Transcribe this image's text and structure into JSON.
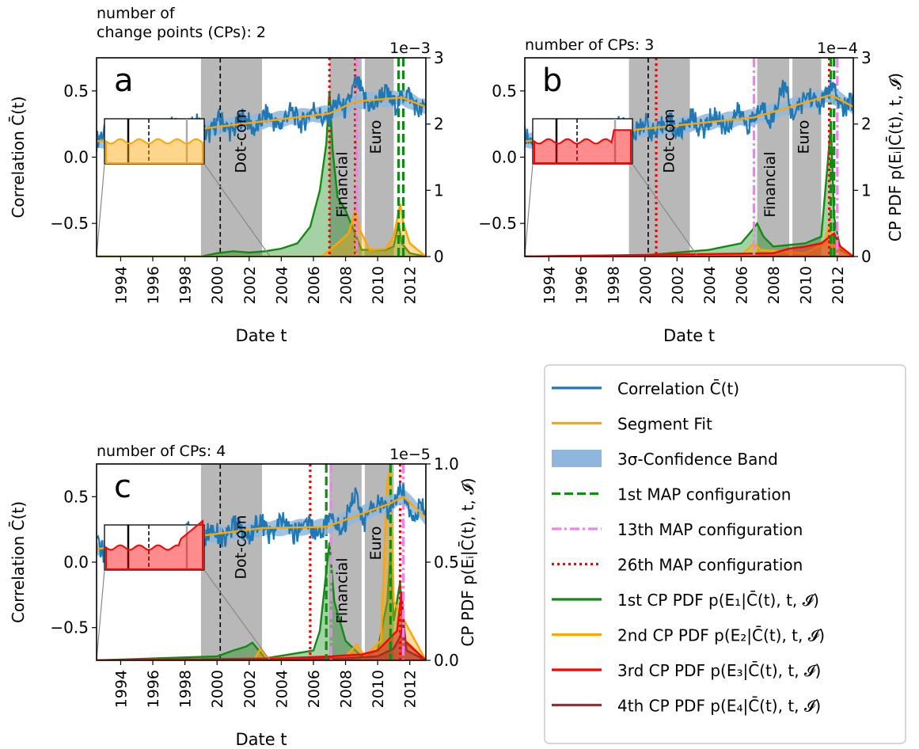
{
  "colors": {
    "correlation": "#1f77b4",
    "segment_fit": "#ffa500",
    "band": "#8fb7dd",
    "map1": "#138a13",
    "map13": "#ee82ee",
    "map26": "#ff0000",
    "pdf1": "#138a13",
    "pdf2": "#ffa500",
    "pdf3": "#ff0000",
    "pdf4": "#a52a2a",
    "crisis_shade": "#b8b8b8"
  },
  "chart_data": [
    {
      "type": "line",
      "panel_label": "a",
      "header_lines": [
        "number of",
        "change points (CPs): 2"
      ],
      "offset_text": "1e−3",
      "ylabel_left": "Correlation C̄(t)",
      "ylabel_right": "",
      "xlabel": "Date t",
      "x_ticks": [
        "1994",
        "1996",
        "1998",
        "2000",
        "2002",
        "2004",
        "2006",
        "2008",
        "2010",
        "2012"
      ],
      "y_left_ticks": [
        "0.5",
        "0.0",
        "−0.5"
      ],
      "y_right_ticks": [
        "3",
        "2",
        "1",
        "0"
      ],
      "ylim_left": [
        -0.75,
        0.75
      ],
      "ylim_right": [
        0,
        3
      ],
      "crisis_labels": [
        "Dot-com",
        "Financial",
        "Euro"
      ],
      "crisis_periods": [
        [
          1999.0,
          2002.8
        ],
        [
          2007.0,
          2009.0
        ],
        [
          2009.2,
          2011.0
        ]
      ],
      "marker_line_x": 2000.2,
      "map_lines": [
        {
          "which": "map26",
          "x": [
            2007.0,
            2008.6
          ]
        },
        {
          "which": "map13",
          "x": [
            2008.7
          ]
        },
        {
          "which": "map1",
          "x": [
            2011.3,
            2011.6
          ]
        }
      ],
      "segment_fit": {
        "x": [
          1992.5,
          2007.0,
          2008.6,
          2011.5,
          2013.0
        ],
        "y": [
          0.12,
          0.33,
          0.42,
          0.45,
          0.38
        ]
      },
      "pdf_curves": [
        {
          "which": "pdf1",
          "filled": true,
          "points": [
            [
              1992.5,
              0
            ],
            [
              1999,
              0
            ],
            [
              2000,
              0.05
            ],
            [
              2001,
              0.08
            ],
            [
              2002,
              0.06
            ],
            [
              2003,
              0.08
            ],
            [
              2004,
              0.12
            ],
            [
              2005,
              0.2
            ],
            [
              2005.8,
              0.45
            ],
            [
              2006.4,
              1.0
            ],
            [
              2006.8,
              1.7
            ],
            [
              2007.0,
              2.5
            ],
            [
              2007.2,
              1.6
            ],
            [
              2007.5,
              0.9
            ],
            [
              2008.0,
              0.7
            ],
            [
              2008.5,
              0.4
            ],
            [
              2009.0,
              0.1
            ],
            [
              2010.5,
              0.1
            ],
            [
              2011.0,
              0.15
            ],
            [
              2011.3,
              0.5
            ],
            [
              2011.5,
              0.2
            ],
            [
              2012,
              0.05
            ],
            [
              2013,
              0
            ]
          ]
        },
        {
          "which": "pdf2",
          "filled": true,
          "points": [
            [
              1992.5,
              0
            ],
            [
              2006.5,
              0
            ],
            [
              2007.5,
              0.2
            ],
            [
              2008.2,
              0.35
            ],
            [
              2008.6,
              0.7
            ],
            [
              2008.9,
              0.4
            ],
            [
              2009.5,
              0.1
            ],
            [
              2010.5,
              0.12
            ],
            [
              2011.0,
              0.3
            ],
            [
              2011.4,
              0.8
            ],
            [
              2011.6,
              0.5
            ],
            [
              2012.0,
              0.2
            ],
            [
              2013,
              0
            ]
          ]
        }
      ],
      "inset": {
        "has_box": true
      }
    },
    {
      "type": "line",
      "panel_label": "b",
      "header_lines": [
        "number of CPs: 3"
      ],
      "offset_text": "1e−4",
      "ylabel_left": "",
      "ylabel_right": "CP PDF p(Eᵢ|C̄(t), t, 𝓘)",
      "xlabel": "Date t",
      "x_ticks": [
        "1994",
        "1996",
        "1998",
        "2000",
        "2002",
        "2004",
        "2006",
        "2008",
        "2010",
        "2012"
      ],
      "y_left_ticks": [
        "0.5",
        "0.0",
        "−0.5"
      ],
      "y_right_ticks": [
        "3",
        "2",
        "1",
        "0"
      ],
      "ylim_left": [
        -0.75,
        0.75
      ],
      "ylim_right": [
        0,
        3
      ],
      "crisis_labels": [
        "Dot-com",
        "Financial",
        "Euro"
      ],
      "crisis_periods": [
        [
          1999.0,
          2002.8
        ],
        [
          2007.0,
          2009.0
        ],
        [
          2009.2,
          2011.0
        ]
      ],
      "marker_line_x": 2000.2,
      "map_lines": [
        {
          "which": "map26",
          "x": [
            2000.7,
            2011.5
          ]
        },
        {
          "which": "map13",
          "x": [
            2006.8,
            2012.0
          ]
        },
        {
          "which": "map1",
          "x": [
            2011.6,
            2011.8
          ]
        }
      ],
      "segment_fit": {
        "x": [
          1992.5,
          2006.8,
          2011.6,
          2013.0
        ],
        "y": [
          0.12,
          0.3,
          0.47,
          0.38
        ]
      },
      "pdf_curves": [
        {
          "which": "pdf1",
          "filled": true,
          "points": [
            [
              1992.5,
              0
            ],
            [
              2000,
              0.02
            ],
            [
              2004,
              0.1
            ],
            [
              2006,
              0.2
            ],
            [
              2006.7,
              0.4
            ],
            [
              2007.0,
              0.5
            ],
            [
              2007.4,
              0.3
            ],
            [
              2008,
              0.15
            ],
            [
              2010,
              0.2
            ],
            [
              2011,
              0.3
            ],
            [
              2011.4,
              1.4
            ],
            [
              2011.6,
              2.0
            ],
            [
              2011.8,
              0.6
            ],
            [
              2012.2,
              0.1
            ],
            [
              2013,
              0
            ]
          ]
        },
        {
          "which": "pdf2",
          "filled": true,
          "points": [
            [
              1992.5,
              0
            ],
            [
              2006,
              0.02
            ],
            [
              2006.8,
              0.2
            ],
            [
              2007.2,
              0.1
            ],
            [
              2010,
              0.05
            ],
            [
              2011.2,
              0.2
            ],
            [
              2011.5,
              0.5
            ],
            [
              2011.7,
              0.2
            ],
            [
              2013,
              0
            ]
          ]
        },
        {
          "which": "pdf3",
          "filled": true,
          "points": [
            [
              1992.5,
              0
            ],
            [
              2008,
              0.05
            ],
            [
              2009,
              0.12
            ],
            [
              2010,
              0.15
            ],
            [
              2011,
              0.2
            ],
            [
              2011.8,
              0.35
            ],
            [
              2012.2,
              0.15
            ],
            [
              2013,
              0
            ]
          ]
        }
      ],
      "inset": {
        "has_box": true
      }
    },
    {
      "type": "line",
      "panel_label": "c",
      "header_lines": [
        "number of CPs: 4"
      ],
      "offset_text": "1e−5",
      "ylabel_left": "Correlation C̄(t)",
      "ylabel_right": "CP PDF p(Eᵢ|C̄(t), t, 𝓘)",
      "xlabel": "Date t",
      "x_ticks": [
        "1994",
        "1996",
        "1998",
        "2000",
        "2002",
        "2004",
        "2006",
        "2008",
        "2010",
        "2012"
      ],
      "y_left_ticks": [
        "0.5",
        "0.0",
        "−0.5"
      ],
      "y_right_ticks": [
        "1.0",
        "0.5",
        "0.0"
      ],
      "ylim_left": [
        -0.75,
        0.75
      ],
      "ylim_right": [
        0,
        1.0
      ],
      "crisis_labels": [
        "Dot-com",
        "Financial",
        "Euro"
      ],
      "crisis_periods": [
        [
          1999.0,
          2002.8
        ],
        [
          2007.0,
          2009.0
        ],
        [
          2009.2,
          2011.0
        ]
      ],
      "marker_line_x": 2000.2,
      "map_lines": [
        {
          "which": "map26",
          "x": [
            2005.8,
            2011.4
          ]
        },
        {
          "which": "map13",
          "x": [
            2007.1,
            2011.6
          ]
        },
        {
          "which": "map1",
          "x": [
            2006.8,
            2010.8
          ]
        }
      ],
      "segment_fit": {
        "x": [
          1992.5,
          2002.8,
          2006.8,
          2010.8,
          2011.6,
          2013.0
        ],
        "y": [
          0.1,
          0.26,
          0.27,
          0.45,
          0.5,
          0.34
        ]
      },
      "pdf_curves": [
        {
          "which": "pdf1",
          "filled": true,
          "points": [
            [
              1992.5,
              0
            ],
            [
              2000,
              0.02
            ],
            [
              2001,
              0.05
            ],
            [
              2001.8,
              0.07
            ],
            [
              2002.2,
              0.09
            ],
            [
              2002.6,
              0.05
            ],
            [
              2003,
              0.01
            ],
            [
              2006,
              0.05
            ],
            [
              2006.4,
              0.15
            ],
            [
              2006.8,
              0.45
            ],
            [
              2007.0,
              0.6
            ],
            [
              2007.3,
              0.3
            ],
            [
              2008,
              0.1
            ],
            [
              2009,
              0.02
            ],
            [
              2010,
              0.05
            ],
            [
              2010.6,
              0.3
            ],
            [
              2010.8,
              0.55
            ],
            [
              2011.0,
              0.2
            ],
            [
              2011.4,
              0.4
            ],
            [
              2011.6,
              0.1
            ],
            [
              2013,
              0
            ]
          ]
        },
        {
          "which": "pdf2",
          "filled": true,
          "points": [
            [
              1992.5,
              0
            ],
            [
              2002.3,
              0
            ],
            [
              2002.7,
              0.06
            ],
            [
              2003.1,
              0.01
            ],
            [
              2008,
              0.02
            ],
            [
              2008.7,
              0.08
            ],
            [
              2009.2,
              0.02
            ],
            [
              2010.2,
              0.1
            ],
            [
              2010.6,
              0.9
            ],
            [
              2010.8,
              1.0
            ],
            [
              2011.0,
              0.3
            ],
            [
              2013,
              0
            ]
          ]
        },
        {
          "which": "pdf3",
          "filled": true,
          "points": [
            [
              1992.5,
              0
            ],
            [
              2004,
              0.01
            ],
            [
              2007,
              0.02
            ],
            [
              2009,
              0.03
            ],
            [
              2010,
              0.05
            ],
            [
              2011.2,
              0.15
            ],
            [
              2011.5,
              0.35
            ],
            [
              2011.7,
              0.1
            ],
            [
              2013,
              0
            ]
          ]
        },
        {
          "which": "pdf4",
          "filled": true,
          "points": [
            [
              1992.5,
              0
            ],
            [
              2008,
              0.01
            ],
            [
              2010,
              0.02
            ],
            [
              2011,
              0.06
            ],
            [
              2011.4,
              0.12
            ],
            [
              2011.6,
              0.2
            ],
            [
              2011.8,
              0.05
            ],
            [
              2013,
              0
            ]
          ]
        }
      ],
      "inset": {
        "has_box": true
      }
    }
  ],
  "legend": {
    "entries": [
      {
        "key": "correlation",
        "style": "line",
        "label": "Correlation C̄(t)"
      },
      {
        "key": "segment_fit",
        "style": "line",
        "label": "Segment Fit"
      },
      {
        "key": "band",
        "style": "band",
        "label": "3σ-Confidence Band"
      },
      {
        "key": "map1",
        "style": "dashed",
        "label": "1st MAP configuration"
      },
      {
        "key": "map13",
        "style": "dashdot",
        "label": "13th MAP configuration"
      },
      {
        "key": "map26",
        "style": "dotted",
        "label": "26th MAP configuration"
      },
      {
        "key": "pdf1",
        "style": "line",
        "label": "1st CP PDF p(E₁|C̄(t), t, 𝓘)"
      },
      {
        "key": "pdf2",
        "style": "line",
        "label": "2nd CP PDF p(E₂|C̄(t), t, 𝓘)"
      },
      {
        "key": "pdf3",
        "style": "line",
        "label": "3rd CP PDF p(E₃|C̄(t), t, 𝓘)"
      },
      {
        "key": "pdf4",
        "style": "line",
        "label": "4th CP PDF p(E₄|C̄(t), t, 𝓘)"
      }
    ]
  }
}
